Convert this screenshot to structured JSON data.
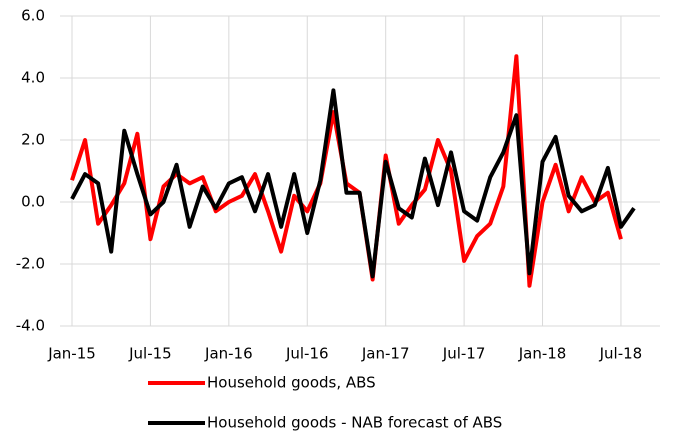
{
  "chart_data": {
    "type": "line",
    "categories": [
      "Jan-15",
      null,
      null,
      null,
      null,
      null,
      "Jul-15",
      null,
      null,
      null,
      null,
      null,
      "Jan-16",
      null,
      null,
      null,
      null,
      null,
      "Jul-16",
      null,
      null,
      null,
      null,
      null,
      "Jan-17",
      null,
      null,
      null,
      null,
      null,
      "Jul-17",
      null,
      null,
      null,
      null,
      null,
      "Jan-18",
      null,
      null,
      null,
      null,
      null,
      "Jul-18",
      null
    ],
    "series": [
      {
        "name": "Household goods, ABS",
        "color": "#ff0000",
        "values": [
          0.7,
          2.0,
          -0.7,
          -0.1,
          0.6,
          2.2,
          -1.2,
          0.5,
          0.9,
          0.6,
          0.8,
          -0.3,
          0.0,
          0.2,
          0.9,
          -0.3,
          -1.6,
          0.2,
          -0.3,
          0.6,
          2.9,
          0.6,
          0.3,
          -2.5,
          1.5,
          -0.7,
          -0.1,
          0.4,
          2.0,
          1.0,
          -1.9,
          -1.1,
          -0.7,
          0.5,
          4.7,
          -2.7,
          0.0,
          1.2,
          -0.3,
          0.8,
          0.0,
          0.3,
          -1.2,
          null
        ]
      },
      {
        "name": "Household goods - NAB forecast of ABS",
        "color": "#000000",
        "values": [
          0.1,
          0.9,
          0.6,
          -1.6,
          2.3,
          0.9,
          -0.4,
          0.0,
          1.2,
          -0.8,
          0.5,
          -0.2,
          0.6,
          0.8,
          -0.3,
          0.9,
          -0.8,
          0.9,
          -1.0,
          0.7,
          3.6,
          0.3,
          0.3,
          -2.4,
          1.3,
          -0.2,
          -0.5,
          1.4,
          -0.1,
          1.6,
          -0.3,
          -0.6,
          0.8,
          1.6,
          2.8,
          -2.3,
          1.3,
          2.1,
          0.2,
          -0.3,
          -0.1,
          1.1,
          -0.8,
          -0.2
        ]
      }
    ],
    "ylim": [
      -4,
      6
    ],
    "yticks": [
      {
        "value": -4,
        "label": "-4.0"
      },
      {
        "value": -2,
        "label": "-2.0"
      },
      {
        "value": 0,
        "label": "0.0"
      },
      {
        "value": 2,
        "label": "2.0"
      },
      {
        "value": 4,
        "label": "4.0"
      },
      {
        "value": 6,
        "label": "6.0"
      }
    ],
    "grid": true
  }
}
